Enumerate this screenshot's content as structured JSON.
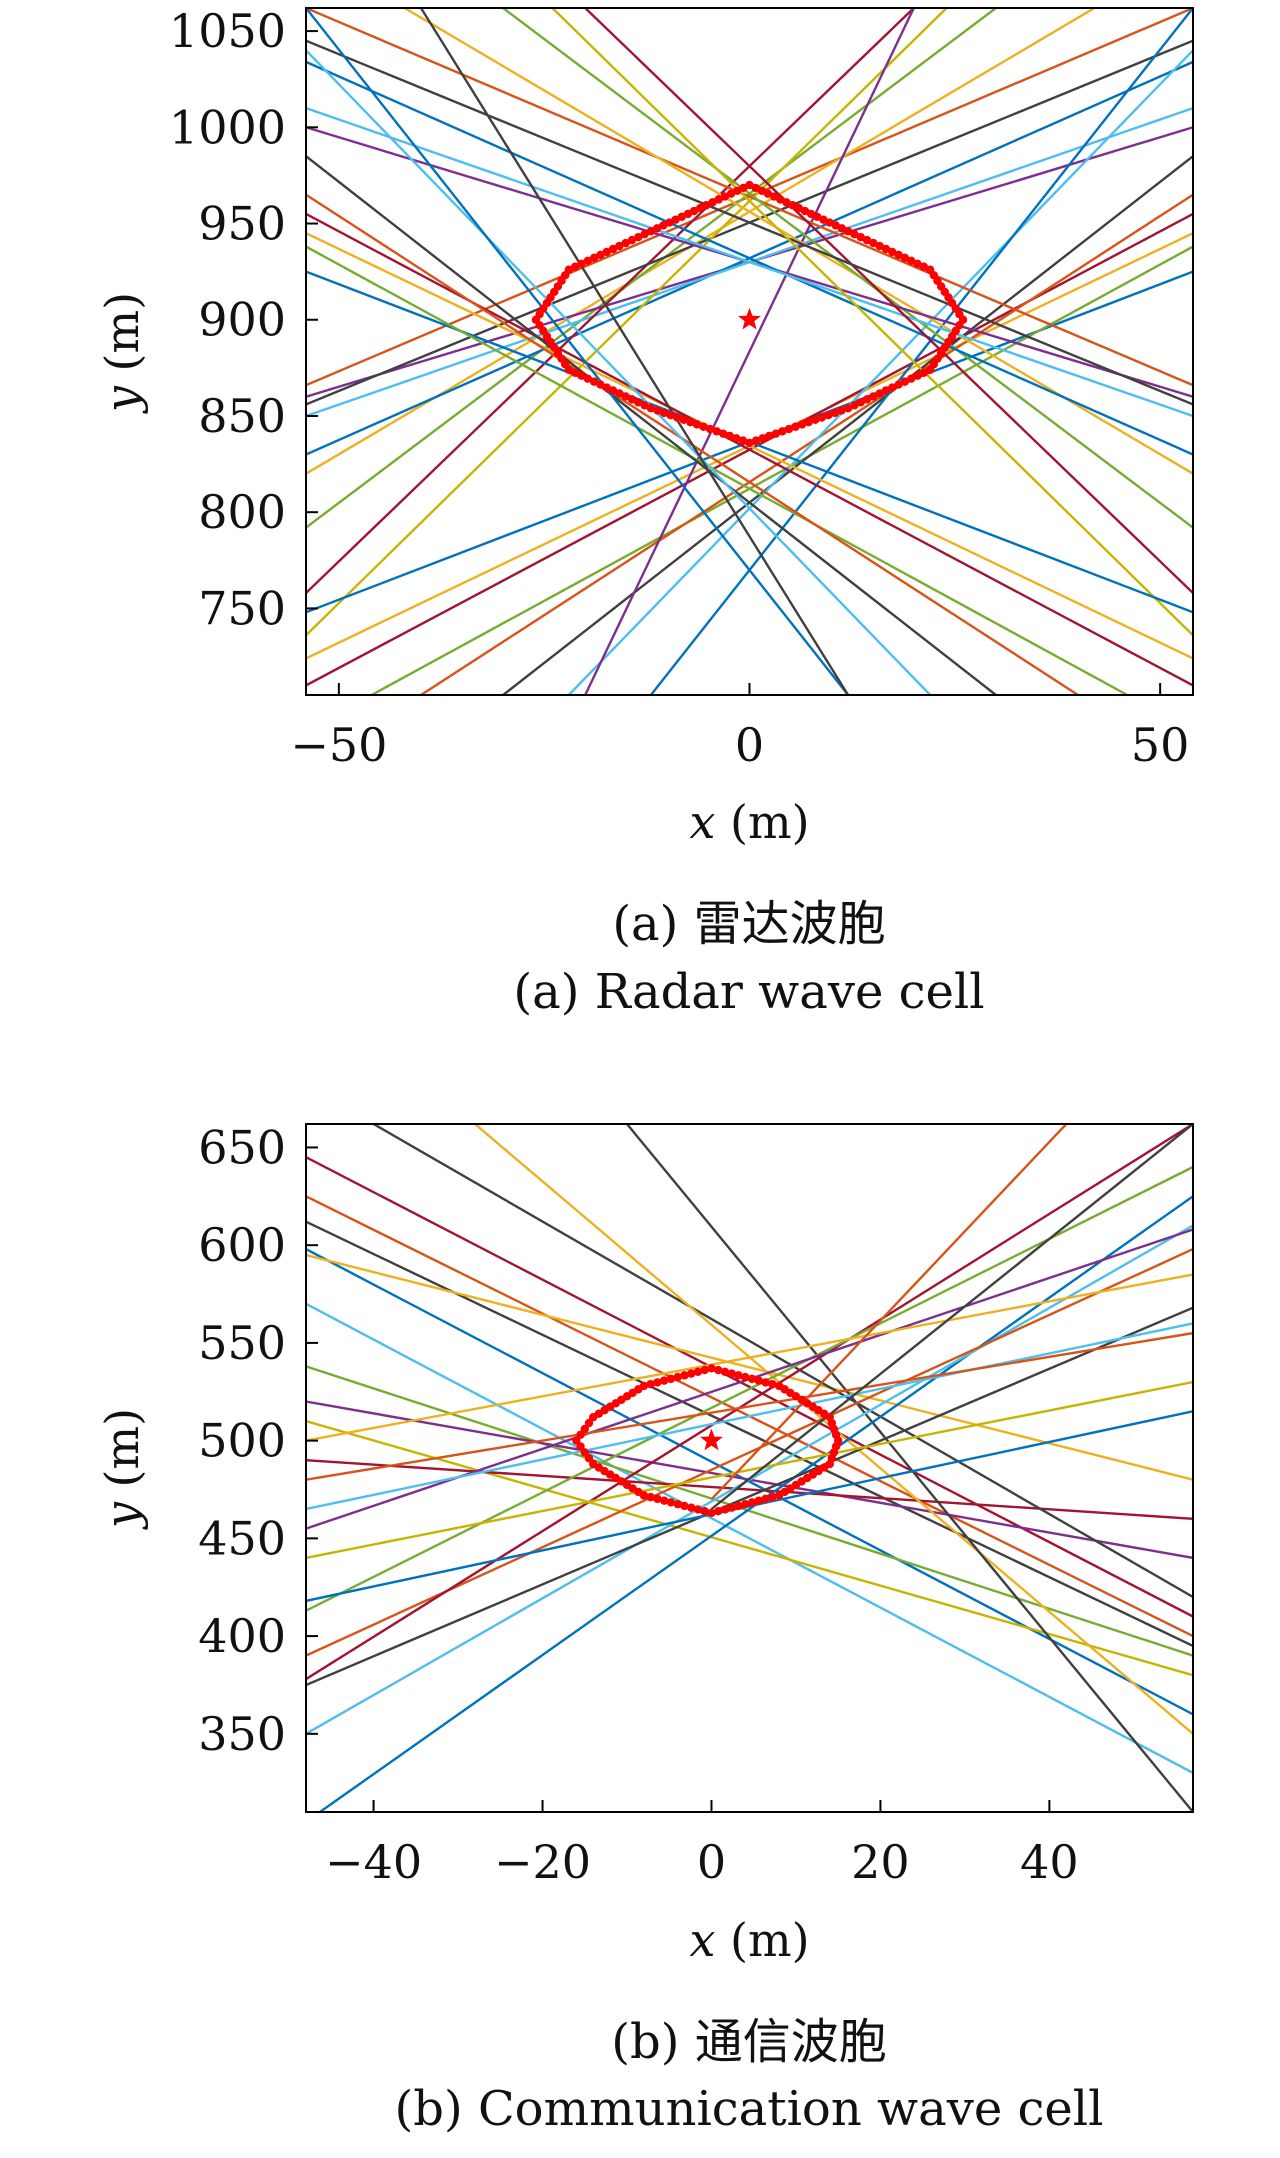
{
  "chart_data": [
    {
      "type": "line",
      "caption_cn": "(a) 雷达波胞",
      "caption_en": "(a) Radar wave cell",
      "xlabel_var": "x",
      "xlabel_unit": " (m)",
      "ylabel_var": "y",
      "ylabel_unit": " (m)",
      "xlim": [
        -54,
        54
      ],
      "ylim": [
        705,
        1062
      ],
      "xticks": [
        -50,
        0,
        50
      ],
      "xtick_labels": [
        "−50",
        "0",
        "50"
      ],
      "yticks": [
        750,
        800,
        850,
        900,
        950,
        1000,
        1050
      ],
      "ytick_labels": [
        "750",
        "800",
        "850",
        "900",
        "950",
        "1000",
        "1050"
      ],
      "target": {
        "x": 0,
        "y": 900,
        "marker": "star"
      },
      "cell_boundary": {
        "color": "#ff0000",
        "points": [
          [
            0,
            970
          ],
          [
            12,
            946
          ],
          [
            22,
            926
          ],
          [
            26,
            900
          ],
          [
            22,
            874
          ],
          [
            12,
            854
          ],
          [
            0,
            836
          ],
          [
            -12,
            854
          ],
          [
            -22,
            874
          ],
          [
            -26,
            900
          ],
          [
            -22,
            926
          ],
          [
            -12,
            946
          ]
        ]
      },
      "lines": [
        {
          "color": "#d95319",
          "points": [
            [
              -54,
              866
            ],
            [
              54,
              1062
            ]
          ]
        },
        {
          "color": "#edb120",
          "points": [
            [
              -54,
              820
            ],
            [
              42,
              1062
            ]
          ]
        },
        {
          "color": "#77ac30",
          "points": [
            [
              -54,
              792
            ],
            [
              30,
              1062
            ]
          ]
        },
        {
          "color": "#7e2f8e",
          "points": [
            [
              -54,
              860
            ],
            [
              54,
              1000
            ]
          ]
        },
        {
          "color": "#0072bd",
          "points": [
            [
              -54,
              830
            ],
            [
              54,
              1034
            ]
          ]
        },
        {
          "color": "#4dbeee",
          "points": [
            [
              -54,
              850
            ],
            [
              54,
              1010
            ]
          ]
        },
        {
          "color": "#a2142f",
          "points": [
            [
              -54,
              758
            ],
            [
              20,
              1062
            ]
          ]
        },
        {
          "color": "#404040",
          "points": [
            [
              -54,
              856
            ],
            [
              54,
              1045
            ]
          ]
        },
        {
          "color": "#c8b400",
          "points": [
            [
              -54,
              736
            ],
            [
              24,
              1062
            ]
          ]
        },
        {
          "color": "#0072bd",
          "points": [
            [
              -54,
              748
            ],
            [
              54,
              925
            ]
          ]
        },
        {
          "color": "#edb120",
          "points": [
            [
              -54,
              724
            ],
            [
              54,
              945
            ]
          ]
        },
        {
          "color": "#a2142f",
          "points": [
            [
              -54,
              710
            ],
            [
              54,
              955
            ]
          ]
        },
        {
          "color": "#77ac30",
          "points": [
            [
              -46,
              705
            ],
            [
              54,
              938
            ]
          ]
        },
        {
          "color": "#d95319",
          "points": [
            [
              -40,
              705
            ],
            [
              54,
              965
            ]
          ]
        },
        {
          "color": "#404040",
          "points": [
            [
              -30,
              705
            ],
            [
              54,
              985
            ]
          ]
        },
        {
          "color": "#4dbeee",
          "points": [
            [
              -22,
              705
            ],
            [
              54,
              1040
            ]
          ]
        },
        {
          "color": "#0072bd",
          "points": [
            [
              -12,
              705
            ],
            [
              54,
              1062
            ]
          ]
        },
        {
          "color": "#7e2f8e",
          "points": [
            [
              -20,
              705
            ],
            [
              20,
              1062
            ]
          ]
        },
        {
          "color": "#d95319",
          "points": [
            [
              54,
              866
            ],
            [
              -54,
              1062
            ]
          ]
        },
        {
          "color": "#edb120",
          "points": [
            [
              54,
              820
            ],
            [
              -42,
              1062
            ]
          ]
        },
        {
          "color": "#77ac30",
          "points": [
            [
              54,
              792
            ],
            [
              -30,
              1062
            ]
          ]
        },
        {
          "color": "#7e2f8e",
          "points": [
            [
              54,
              860
            ],
            [
              -54,
              1000
            ]
          ]
        },
        {
          "color": "#0072bd",
          "points": [
            [
              54,
              830
            ],
            [
              -54,
              1034
            ]
          ]
        },
        {
          "color": "#4dbeee",
          "points": [
            [
              54,
              850
            ],
            [
              -54,
              1010
            ]
          ]
        },
        {
          "color": "#a2142f",
          "points": [
            [
              54,
              758
            ],
            [
              -20,
              1062
            ]
          ]
        },
        {
          "color": "#404040",
          "points": [
            [
              54,
              856
            ],
            [
              -54,
              1045
            ]
          ]
        },
        {
          "color": "#c8b400",
          "points": [
            [
              54,
              736
            ],
            [
              -24,
              1062
            ]
          ]
        },
        {
          "color": "#0072bd",
          "points": [
            [
              54,
              748
            ],
            [
              -54,
              925
            ]
          ]
        },
        {
          "color": "#edb120",
          "points": [
            [
              54,
              724
            ],
            [
              -54,
              945
            ]
          ]
        },
        {
          "color": "#a2142f",
          "points": [
            [
              54,
              710
            ],
            [
              -54,
              955
            ]
          ]
        },
        {
          "color": "#77ac30",
          "points": [
            [
              46,
              705
            ],
            [
              -54,
              938
            ]
          ]
        },
        {
          "color": "#d95319",
          "points": [
            [
              40,
              705
            ],
            [
              -54,
              965
            ]
          ]
        },
        {
          "color": "#404040",
          "points": [
            [
              30,
              705
            ],
            [
              -54,
              985
            ]
          ]
        },
        {
          "color": "#4dbeee",
          "points": [
            [
              22,
              705
            ],
            [
              -54,
              1040
            ]
          ]
        },
        {
          "color": "#0072bd",
          "points": [
            [
              12,
              705
            ],
            [
              -54,
              1062
            ]
          ]
        },
        {
          "color": "#404040",
          "points": [
            [
              -40,
              1062
            ],
            [
              12,
              705
            ]
          ]
        }
      ]
    },
    {
      "type": "line",
      "caption_cn": "(b) 通信波胞",
      "caption_en": "(b) Communication wave cell",
      "xlabel_var": "x",
      "xlabel_unit": " (m)",
      "ylabel_var": "y",
      "ylabel_unit": " (m)",
      "xlim": [
        -48,
        57
      ],
      "ylim": [
        310,
        662
      ],
      "xticks": [
        -40,
        -20,
        0,
        20,
        40
      ],
      "xtick_labels": [
        "−40",
        "−20",
        "0",
        "20",
        "40"
      ],
      "yticks": [
        350,
        400,
        450,
        500,
        550,
        600,
        650
      ],
      "ytick_labels": [
        "350",
        "400",
        "450",
        "500",
        "550",
        "600",
        "650"
      ],
      "target": {
        "x": 0,
        "y": 500,
        "marker": "star"
      },
      "cell_boundary": {
        "color": "#ff0000",
        "points": [
          [
            0,
            537
          ],
          [
            8,
            528
          ],
          [
            14,
            512
          ],
          [
            15,
            500
          ],
          [
            14,
            488
          ],
          [
            8,
            472
          ],
          [
            0,
            463
          ],
          [
            -8,
            472
          ],
          [
            -14,
            488
          ],
          [
            -16,
            500
          ],
          [
            -14,
            512
          ],
          [
            -8,
            528
          ]
        ]
      },
      "lines": [
        {
          "color": "#a2142f",
          "points": [
            [
              -48,
              645
            ],
            [
              57,
              410
            ]
          ]
        },
        {
          "color": "#d95319",
          "points": [
            [
              -48,
              625
            ],
            [
              57,
              400
            ]
          ]
        },
        {
          "color": "#404040",
          "points": [
            [
              -48,
              612
            ],
            [
              57,
              395
            ]
          ]
        },
        {
          "color": "#0072bd",
          "points": [
            [
              -48,
              598
            ],
            [
              57,
              360
            ]
          ]
        },
        {
          "color": "#edb120",
          "points": [
            [
              -48,
              595
            ],
            [
              57,
              480
            ]
          ]
        },
        {
          "color": "#4dbeee",
          "points": [
            [
              -48,
              570
            ],
            [
              57,
              330
            ]
          ]
        },
        {
          "color": "#77ac30",
          "points": [
            [
              -48,
              538
            ],
            [
              57,
              390
            ]
          ]
        },
        {
          "color": "#7e2f8e",
          "points": [
            [
              -48,
              520
            ],
            [
              57,
              440
            ]
          ]
        },
        {
          "color": "#c8b400",
          "points": [
            [
              -48,
              510
            ],
            [
              57,
              380
            ]
          ]
        },
        {
          "color": "#a2142f",
          "points": [
            [
              -48,
              490
            ],
            [
              57,
              460
            ]
          ]
        },
        {
          "color": "#404040",
          "points": [
            [
              -40,
              662
            ],
            [
              57,
              420
            ]
          ]
        },
        {
          "color": "#edb120",
          "points": [
            [
              -28,
              662
            ],
            [
              57,
              350
            ]
          ]
        },
        {
          "color": "#404040",
          "points": [
            [
              -10,
              662
            ],
            [
              57,
              310
            ]
          ]
        },
        {
          "color": "#0072bd",
          "points": [
            [
              -48,
              305
            ],
            [
              57,
              625
            ]
          ]
        },
        {
          "color": "#4dbeee",
          "points": [
            [
              -48,
              350
            ],
            [
              57,
              610
            ]
          ]
        },
        {
          "color": "#404040",
          "points": [
            [
              -48,
              375
            ],
            [
              57,
              568
            ]
          ]
        },
        {
          "color": "#d95319",
          "points": [
            [
              -48,
              390
            ],
            [
              57,
              598
            ]
          ]
        },
        {
          "color": "#a2142f",
          "points": [
            [
              -48,
              378
            ],
            [
              57,
              662
            ]
          ]
        },
        {
          "color": "#77ac30",
          "points": [
            [
              -48,
              413
            ],
            [
              57,
              640
            ]
          ]
        },
        {
          "color": "#0072bd",
          "points": [
            [
              -48,
              418
            ],
            [
              57,
              515
            ]
          ]
        },
        {
          "color": "#c8b400",
          "points": [
            [
              -48,
              440
            ],
            [
              57,
              530
            ]
          ]
        },
        {
          "color": "#7e2f8e",
          "points": [
            [
              -48,
              455
            ],
            [
              57,
              608
            ]
          ]
        },
        {
          "color": "#4dbeee",
          "points": [
            [
              -48,
              465
            ],
            [
              57,
              560
            ]
          ]
        },
        {
          "color": "#d95319",
          "points": [
            [
              -48,
              480
            ],
            [
              57,
              555
            ]
          ]
        },
        {
          "color": "#edb120",
          "points": [
            [
              -48,
              500
            ],
            [
              57,
              585
            ]
          ]
        },
        {
          "color": "#404040",
          "points": [
            [
              0,
              465
            ],
            [
              57,
              662
            ]
          ]
        },
        {
          "color": "#d95319",
          "points": [
            [
              0,
              470
            ],
            [
              42,
              662
            ]
          ]
        }
      ]
    }
  ]
}
